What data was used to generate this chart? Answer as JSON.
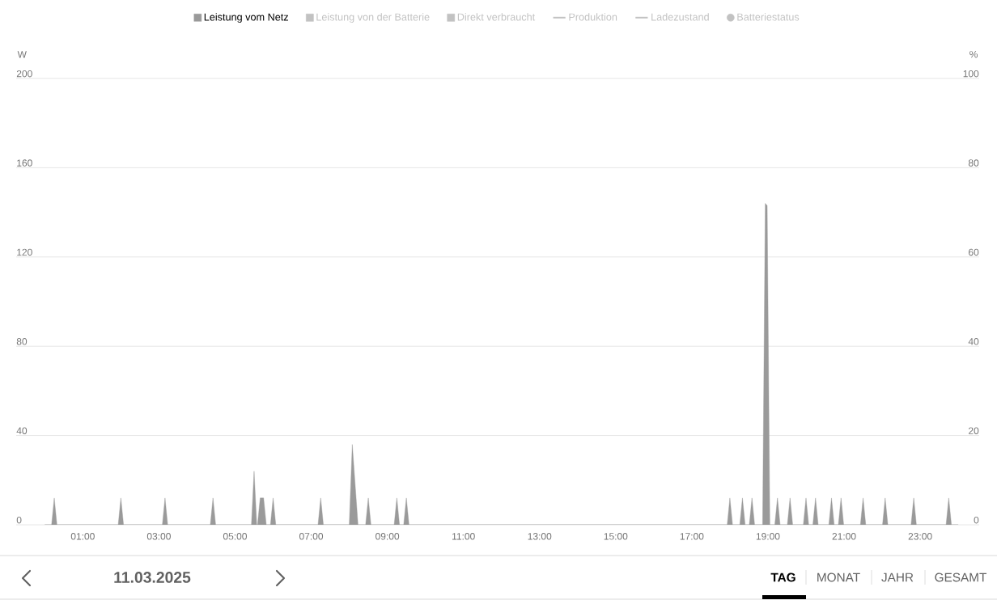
{
  "chart_data": {
    "type": "area",
    "ylabel": "W",
    "y2label": "%",
    "x": [
      0,
      0.18,
      0.25,
      0.32,
      1.93,
      2.0,
      2.07,
      3.09,
      3.16,
      3.23,
      4.35,
      4.42,
      4.49,
      5.43,
      5.5,
      5.57,
      5.59,
      5.66,
      5.75,
      5.82,
      5.93,
      6.0,
      6.07,
      7.18,
      7.25,
      7.32,
      8.0,
      8.08,
      8.23,
      8.43,
      8.5,
      8.57,
      9.18,
      9.25,
      9.32,
      9.43,
      9.5,
      9.57,
      17.93,
      18.0,
      18.07,
      18.26,
      18.33,
      18.4,
      18.51,
      18.58,
      18.65,
      18.86,
      18.93,
      18.98,
      19.05,
      19.18,
      19.25,
      19.32,
      19.51,
      19.58,
      19.65,
      19.93,
      20.0,
      20.07,
      20.18,
      20.25,
      20.32,
      20.6,
      20.67,
      20.74,
      20.85,
      20.92,
      20.99,
      21.43,
      21.5,
      21.57,
      22.01,
      22.08,
      22.15,
      22.76,
      22.83,
      22.9,
      23.68,
      23.75,
      23.82,
      24
    ],
    "series": [
      {
        "name": "Leistung vom Netz",
        "color": "#9a9a9a",
        "values": [
          0,
          0,
          12,
          0,
          0,
          12,
          0,
          0,
          12,
          0,
          0,
          12,
          0,
          0,
          24,
          0,
          0,
          12,
          12,
          0,
          0,
          12,
          0,
          0,
          12,
          0,
          0,
          36,
          0,
          0,
          12,
          0,
          0,
          12,
          0,
          0,
          12,
          0,
          0,
          12,
          0,
          0,
          12,
          0,
          0,
          12,
          0,
          0,
          144,
          143,
          0,
          0,
          12,
          0,
          0,
          12,
          0,
          0,
          12,
          0,
          0,
          12,
          0,
          0,
          12,
          0,
          0,
          12,
          0,
          0,
          12,
          0,
          0,
          12,
          0,
          0,
          12,
          0,
          0,
          12,
          0,
          0
        ]
      }
    ],
    "xlim": [
      -0.75,
      24.55
    ],
    "xticks": [
      {
        "value": 1,
        "label": "01:00"
      },
      {
        "value": 3,
        "label": "03:00"
      },
      {
        "value": 5,
        "label": "05:00"
      },
      {
        "value": 7,
        "label": "07:00"
      },
      {
        "value": 9,
        "label": "09:00"
      },
      {
        "value": 11,
        "label": "11:00"
      },
      {
        "value": 13,
        "label": "13:00"
      },
      {
        "value": 15,
        "label": "15:00"
      },
      {
        "value": 17,
        "label": "17:00"
      },
      {
        "value": 19,
        "label": "19:00"
      },
      {
        "value": 21,
        "label": "21:00"
      },
      {
        "value": 23,
        "label": "23:00"
      }
    ],
    "ylim": [
      0,
      200
    ],
    "yticks": [
      0,
      40,
      80,
      120,
      160,
      200
    ],
    "y2lim": [
      0,
      100
    ],
    "y2ticks": [
      0,
      20,
      40,
      60,
      80,
      100
    ],
    "grid": "y",
    "legend": "top",
    "annotations": [
      "Leistung von der Batterie",
      "Direkt verbraucht",
      "Produktion",
      "Ladezustand",
      "Batteriestatus",
      "11.03.2025",
      "TAG",
      "MONAT",
      "JAHR",
      "GESAMT"
    ]
  }
}
